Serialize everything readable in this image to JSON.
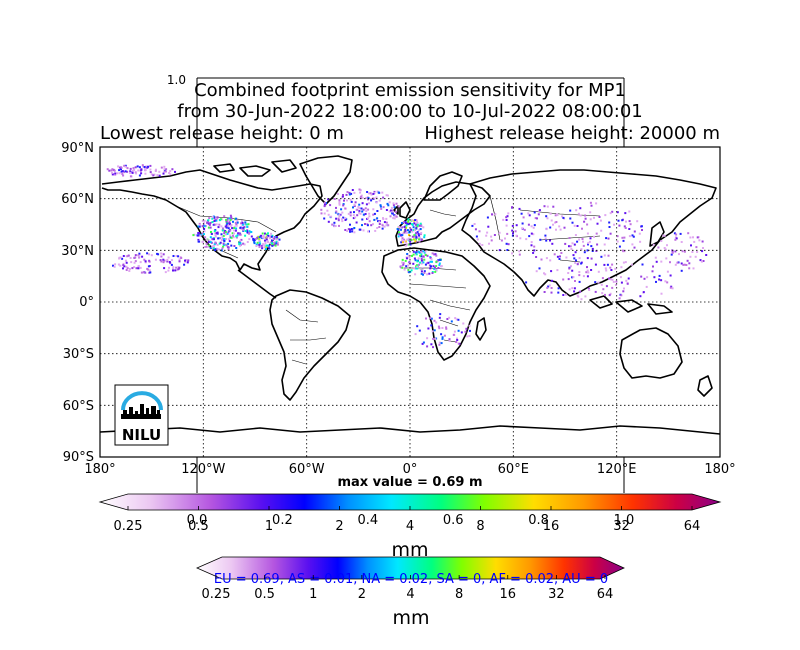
{
  "title": {
    "line1": "Combined footprint emission sensitivity for MP1",
    "line2": "from 30-Jun-2022 18:00:00 to 10-Jul-2022 08:00:01",
    "line3_left": "Lowest release height: 0 m",
    "line3_right": "Highest release height: 20000 m",
    "stray_axis_label": "1.0"
  },
  "map": {
    "projection": "cylindrical",
    "lat_labels": [
      "90°N",
      "60°N",
      "30°N",
      "0°",
      "30°S",
      "60°S",
      "90°S"
    ],
    "lon_labels": [
      "180°",
      "120°W",
      "60°W",
      "0°",
      "60°E",
      "120°E",
      "180°"
    ],
    "grid": "dotted"
  },
  "logo": {
    "text": "NILU",
    "color": "#29abe2"
  },
  "max_value_text": "max value = 0.69 m",
  "colorbar_main": {
    "ticks": [
      "0.25",
      "0.5",
      "1",
      "2",
      "4",
      "8",
      "16",
      "32",
      "64"
    ],
    "overlay_ticks": [
      "0.0",
      "0.2",
      "0.4",
      "0.6",
      "0.8",
      "1.0"
    ],
    "unit": "mm"
  },
  "colorbar_second": {
    "ticks": [
      "0.25",
      "0.5",
      "1",
      "2",
      "4",
      "8",
      "16",
      "32",
      "64"
    ],
    "unit": "mm",
    "region_text": "EU = 0.69,  AS = 0.01,  NA = 0.02,  SA = 0,  AF = 0.02,  AU = 0"
  },
  "colors": {
    "colorbar_stops": [
      "#ffffff",
      "#e6b8f0",
      "#b455e0",
      "#6a1ff0",
      "#0000ff",
      "#0078ff",
      "#00e5ff",
      "#00ff7f",
      "#7fff00",
      "#ffd700",
      "#ff9900",
      "#ff3300",
      "#cc0044",
      "#990077"
    ],
    "region_text_color": "#0000ff"
  }
}
